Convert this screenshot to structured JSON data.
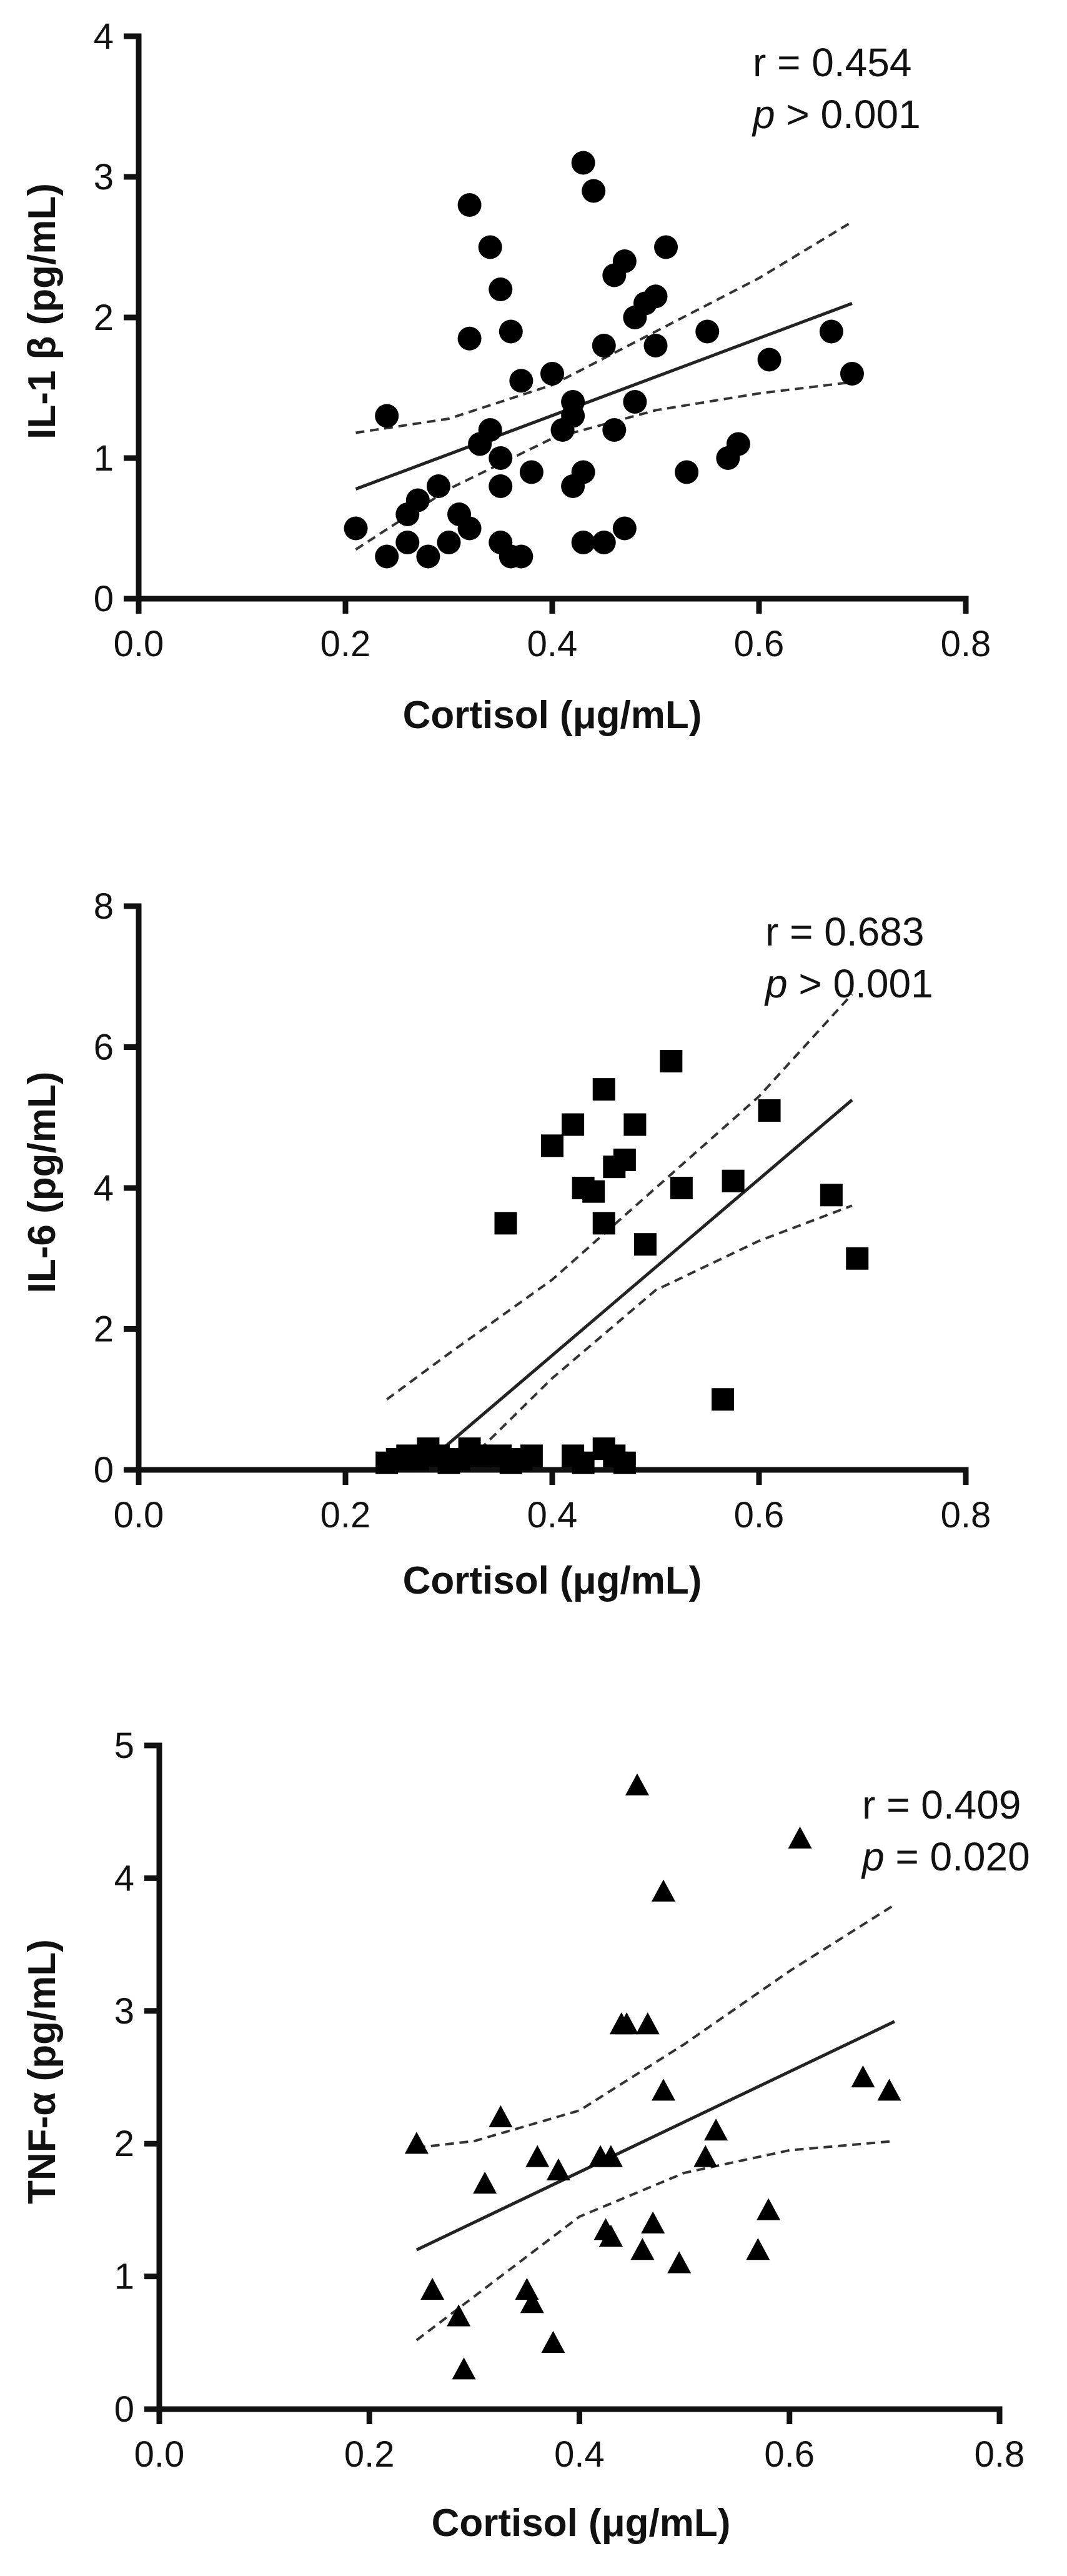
{
  "chart_data": [
    {
      "type": "scatter",
      "xlabel": "Cortisol (μg/mL)",
      "ylabel": "IL-1 β (pg/mL)",
      "xlim": [
        0.0,
        0.8
      ],
      "ylim": [
        0,
        4
      ],
      "xticks": [
        "0.0",
        "0.2",
        "0.4",
        "0.6",
        "0.8"
      ],
      "yticks": [
        "0",
        "1",
        "2",
        "3",
        "4"
      ],
      "marker": "circle",
      "annotation": {
        "r": "r = 0.454",
        "p_label": "p",
        "p_rest": " > 0.001"
      },
      "fit": {
        "x0": 0.21,
        "y0": 0.78,
        "x1": 0.69,
        "y1": 2.1
      },
      "ci_upper": [
        [
          0.21,
          1.18
        ],
        [
          0.3,
          1.28
        ],
        [
          0.4,
          1.52
        ],
        [
          0.5,
          1.9
        ],
        [
          0.6,
          2.28
        ],
        [
          0.69,
          2.68
        ]
      ],
      "ci_lower": [
        [
          0.21,
          0.35
        ],
        [
          0.3,
          0.78
        ],
        [
          0.4,
          1.14
        ],
        [
          0.5,
          1.34
        ],
        [
          0.6,
          1.46
        ],
        [
          0.69,
          1.54
        ]
      ],
      "points": [
        [
          0.21,
          0.5
        ],
        [
          0.24,
          0.3
        ],
        [
          0.24,
          1.3
        ],
        [
          0.26,
          0.6
        ],
        [
          0.26,
          0.4
        ],
        [
          0.27,
          0.7
        ],
        [
          0.28,
          0.3
        ],
        [
          0.29,
          0.8
        ],
        [
          0.3,
          0.4
        ],
        [
          0.31,
          0.6
        ],
        [
          0.32,
          1.85
        ],
        [
          0.32,
          0.5
        ],
        [
          0.32,
          2.8
        ],
        [
          0.33,
          1.1
        ],
        [
          0.34,
          1.2
        ],
        [
          0.34,
          2.5
        ],
        [
          0.35,
          2.2
        ],
        [
          0.35,
          1.0
        ],
        [
          0.35,
          0.8
        ],
        [
          0.35,
          0.4
        ],
        [
          0.36,
          0.3
        ],
        [
          0.36,
          1.9
        ],
        [
          0.37,
          1.55
        ],
        [
          0.37,
          0.3
        ],
        [
          0.38,
          0.9
        ],
        [
          0.4,
          1.6
        ],
        [
          0.41,
          1.2
        ],
        [
          0.42,
          1.3
        ],
        [
          0.42,
          0.8
        ],
        [
          0.43,
          0.9
        ],
        [
          0.43,
          0.4
        ],
        [
          0.43,
          3.1
        ],
        [
          0.44,
          2.9
        ],
        [
          0.45,
          0.4
        ],
        [
          0.45,
          1.8
        ],
        [
          0.46,
          2.3
        ],
        [
          0.46,
          1.2
        ],
        [
          0.47,
          2.4
        ],
        [
          0.47,
          0.5
        ],
        [
          0.48,
          1.4
        ],
        [
          0.48,
          2.0
        ],
        [
          0.49,
          2.1
        ],
        [
          0.5,
          2.15
        ],
        [
          0.5,
          1.8
        ],
        [
          0.51,
          2.5
        ],
        [
          0.53,
          0.9
        ],
        [
          0.55,
          1.9
        ],
        [
          0.57,
          1.0
        ],
        [
          0.58,
          1.1
        ],
        [
          0.61,
          1.7
        ],
        [
          0.67,
          1.9
        ],
        [
          0.69,
          1.6
        ],
        [
          0.42,
          1.4
        ]
      ]
    },
    {
      "type": "scatter",
      "xlabel": "Cortisol (μg/mL)",
      "ylabel": "IL-6 (pg/mL)",
      "xlim": [
        0.0,
        0.8
      ],
      "ylim": [
        0,
        8
      ],
      "xticks": [
        "0.0",
        "0.2",
        "0.4",
        "0.6",
        "0.8"
      ],
      "yticks": [
        "0",
        "2",
        "4",
        "6",
        "8"
      ],
      "marker": "square",
      "annotation": {
        "r": "r = 0.683",
        "p_label": "p",
        "p_rest": " > 0.001"
      },
      "fit": {
        "x0": 0.27,
        "y0": 0.0,
        "x1": 0.69,
        "y1": 5.25
      },
      "ci_upper": [
        [
          0.24,
          1.0
        ],
        [
          0.3,
          1.65
        ],
        [
          0.4,
          2.7
        ],
        [
          0.5,
          4.0
        ],
        [
          0.6,
          5.3
        ],
        [
          0.69,
          6.75
        ]
      ],
      "ci_lower": [
        [
          0.31,
          0.0
        ],
        [
          0.4,
          1.3
        ],
        [
          0.5,
          2.55
        ],
        [
          0.6,
          3.25
        ],
        [
          0.69,
          3.75
        ]
      ],
      "points": [
        [
          0.24,
          0.1
        ],
        [
          0.25,
          0.15
        ],
        [
          0.26,
          0.2
        ],
        [
          0.27,
          0.15
        ],
        [
          0.28,
          0.3
        ],
        [
          0.29,
          0.2
        ],
        [
          0.3,
          0.1
        ],
        [
          0.31,
          0.15
        ],
        [
          0.32,
          0.3
        ],
        [
          0.33,
          0.2
        ],
        [
          0.35,
          0.2
        ],
        [
          0.36,
          0.1
        ],
        [
          0.37,
          0.15
        ],
        [
          0.38,
          0.2
        ],
        [
          0.42,
          0.2
        ],
        [
          0.43,
          0.1
        ],
        [
          0.45,
          0.3
        ],
        [
          0.46,
          0.2
        ],
        [
          0.47,
          0.1
        ],
        [
          0.355,
          3.5
        ],
        [
          0.4,
          4.6
        ],
        [
          0.42,
          4.9
        ],
        [
          0.43,
          4.0
        ],
        [
          0.44,
          3.95
        ],
        [
          0.45,
          5.4
        ],
        [
          0.45,
          3.5
        ],
        [
          0.46,
          4.3
        ],
        [
          0.47,
          4.4
        ],
        [
          0.48,
          4.9
        ],
        [
          0.49,
          3.2
        ],
        [
          0.515,
          5.8
        ],
        [
          0.525,
          4.0
        ],
        [
          0.565,
          1.0
        ],
        [
          0.575,
          4.1
        ],
        [
          0.61,
          5.1
        ],
        [
          0.67,
          3.9
        ],
        [
          0.695,
          3.0
        ]
      ]
    },
    {
      "type": "scatter",
      "xlabel": "Cortisol (μg/mL)",
      "ylabel": "TNF-α (pg/mL)",
      "xlim": [
        0.0,
        0.8
      ],
      "ylim": [
        0,
        5
      ],
      "xticks": [
        "0.0",
        "0.2",
        "0.4",
        "0.6",
        "0.8"
      ],
      "yticks": [
        "0",
        "1",
        "2",
        "3",
        "4",
        "5"
      ],
      "marker": "triangle",
      "annotation": {
        "r": "r = 0.409",
        "p_label": "p",
        "p_rest": " = 0.020"
      },
      "fit": {
        "x0": 0.245,
        "y0": 1.2,
        "x1": 0.7,
        "y1": 2.92
      },
      "ci_upper": [
        [
          0.245,
          1.97
        ],
        [
          0.3,
          2.02
        ],
        [
          0.4,
          2.25
        ],
        [
          0.5,
          2.75
        ],
        [
          0.6,
          3.3
        ],
        [
          0.7,
          3.8
        ]
      ],
      "ci_lower": [
        [
          0.245,
          0.52
        ],
        [
          0.3,
          0.85
        ],
        [
          0.4,
          1.45
        ],
        [
          0.5,
          1.78
        ],
        [
          0.6,
          1.95
        ],
        [
          0.7,
          2.02
        ]
      ],
      "points": [
        [
          0.245,
          2.0
        ],
        [
          0.26,
          0.9
        ],
        [
          0.285,
          0.7
        ],
        [
          0.29,
          0.3
        ],
        [
          0.31,
          1.7
        ],
        [
          0.325,
          2.2
        ],
        [
          0.35,
          0.9
        ],
        [
          0.355,
          0.8
        ],
        [
          0.36,
          1.9
        ],
        [
          0.375,
          0.5
        ],
        [
          0.38,
          1.8
        ],
        [
          0.42,
          1.9
        ],
        [
          0.425,
          1.35
        ],
        [
          0.43,
          1.3
        ],
        [
          0.43,
          1.9
        ],
        [
          0.44,
          2.9
        ],
        [
          0.445,
          2.9
        ],
        [
          0.455,
          4.7
        ],
        [
          0.46,
          1.2
        ],
        [
          0.465,
          2.9
        ],
        [
          0.47,
          1.4
        ],
        [
          0.48,
          2.4
        ],
        [
          0.48,
          3.9
        ],
        [
          0.495,
          1.1
        ],
        [
          0.52,
          1.9
        ],
        [
          0.53,
          2.1
        ],
        [
          0.57,
          1.2
        ],
        [
          0.58,
          1.5
        ],
        [
          0.61,
          4.3
        ],
        [
          0.67,
          2.5
        ],
        [
          0.695,
          2.4
        ]
      ]
    }
  ]
}
